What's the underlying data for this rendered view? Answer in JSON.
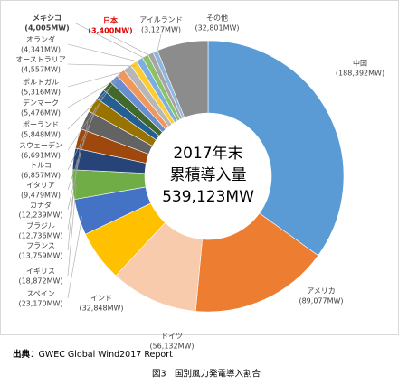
{
  "chart_data": {
    "type": "donut",
    "center_text": [
      "2017年末",
      "累積導入量",
      "539,123MW"
    ],
    "categories": [
      "中国",
      "アメリカ",
      "ドイツ",
      "インド",
      "スペイン",
      "イギリス",
      "フランス",
      "ブラジル",
      "カナダ",
      "イタリア",
      "トルコ",
      "スウェーデン",
      "ポーランド",
      "デンマーク",
      "ポルトガル",
      "オーストラリア",
      "オランダ",
      "メキシコ",
      "日本",
      "アイルランド",
      "その他"
    ],
    "values": [
      188392,
      89077,
      56132,
      32848,
      23170,
      18872,
      13759,
      12736,
      12239,
      9479,
      6857,
      6691,
      5848,
      5476,
      5316,
      4557,
      4341,
      4005,
      3400,
      3127,
      32801
    ],
    "value_labels": [
      "(188,392MW)",
      "(89,077MW)",
      "(56,132MW)",
      "(32,848MW)",
      "(23,170MW)",
      "(18,872MW)",
      "(13,759MW)",
      "(12,736MW)",
      "(12,239MW)",
      "(9,479MW)",
      "(6,857MW)",
      "(6,691MW)",
      "(5,848MW)",
      "(5,476MW)",
      "(5,316MW)",
      "(4,557MW)",
      "(4,341MW)",
      "(4,005MW)",
      "(3,400MW)",
      "(3,127MW)",
      "(32,801MW)"
    ],
    "colors": [
      "#5b9bd5",
      "#ed7d31",
      "#f8cbad",
      "#ffc000",
      "#4472c4",
      "#70ad47",
      "#264478",
      "#9e480e",
      "#636363",
      "#997300",
      "#255e91",
      "#43682b",
      "#698ed0",
      "#f1975a",
      "#b7b7b7",
      "#ffcd33",
      "#7cafdd",
      "#8cc168",
      "#a5a5a5",
      "#8fb6de",
      "#8c8c8c"
    ],
    "source_label": "出典",
    "source": "：GWEC Global Wind2017 Report",
    "caption": "図3　国別風力発電導入割合"
  }
}
